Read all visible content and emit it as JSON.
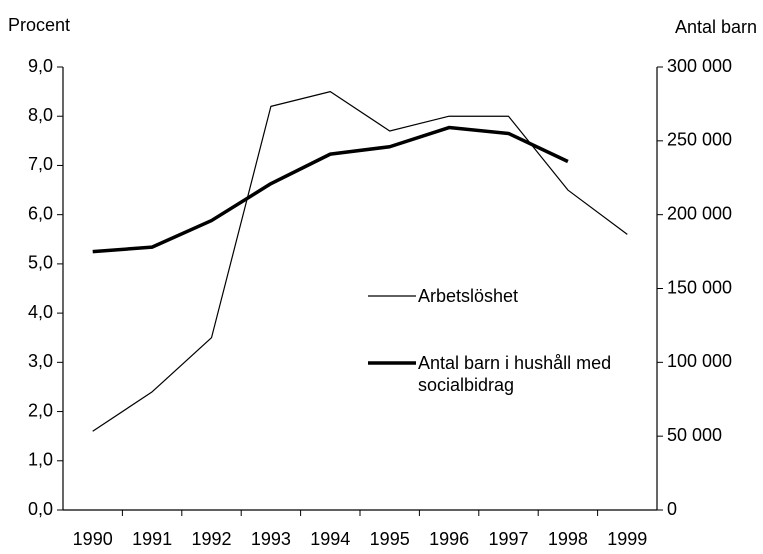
{
  "chart_data": {
    "type": "line",
    "y_label": "Procent",
    "y2_label": "Antal barn",
    "categories": [
      "1990",
      "1991",
      "1992",
      "1993",
      "1994",
      "1995",
      "1996",
      "1997",
      "1998",
      "1999"
    ],
    "series": [
      {
        "name": "Arbetslöshet",
        "color": "#000000",
        "width": 1.2,
        "values": [
          1.6,
          2.4,
          3.5,
          8.2,
          8.5,
          7.7,
          8.0,
          8.0,
          6.5,
          5.6
        ]
      },
      {
        "name": "Antal barn i hushåll med socialbidrag",
        "color": "#000000",
        "width": 3.5,
        "axis": "y2",
        "values": [
          175000,
          178000,
          196000,
          221000,
          241000,
          246000,
          259000,
          255000,
          236000,
          null
        ]
      }
    ],
    "ylim": [
      0,
      9
    ],
    "yticks": [
      {
        "value": 0,
        "label": "0,0"
      },
      {
        "value": 1,
        "label": "1,0"
      },
      {
        "value": 2,
        "label": "2,0"
      },
      {
        "value": 3,
        "label": "3,0"
      },
      {
        "value": 4,
        "label": "4,0"
      },
      {
        "value": 5,
        "label": "5,0"
      },
      {
        "value": 6,
        "label": "6,0"
      },
      {
        "value": 7,
        "label": "7,0"
      },
      {
        "value": 8,
        "label": "8,0"
      },
      {
        "value": 9,
        "label": "9,0"
      }
    ],
    "y2lim": [
      0,
      300000
    ],
    "y2ticks": [
      0,
      {
        "value": 50000,
        "label": "50 000"
      },
      {
        "value": 100000,
        "label": "100 000"
      },
      {
        "value": 150000,
        "label": "150 000"
      },
      {
        "value": 200000,
        "label": "200 000"
      },
      {
        "value": 250000,
        "label": "250 000"
      },
      {
        "value": 300000,
        "label": "300 000"
      }
    ],
    "grid": false
  }
}
